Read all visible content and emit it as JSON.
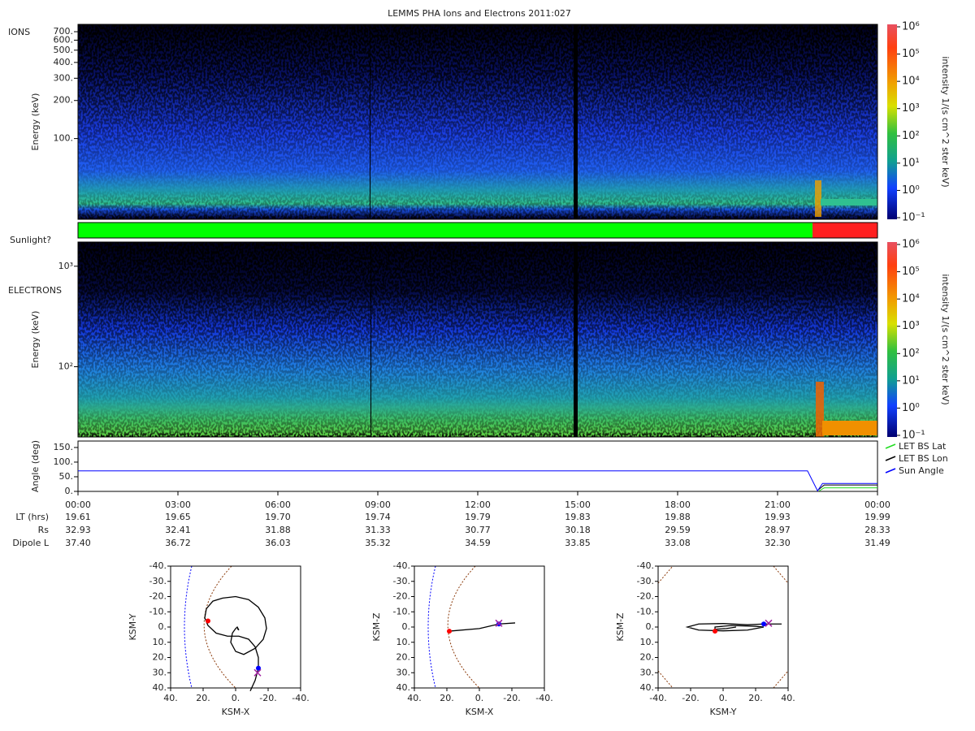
{
  "title": "LEMMS PHA Ions and Electrons  2011:027",
  "chart_data": [
    {
      "type": "spectrogram",
      "panel_label": "IONS",
      "y_label": "Energy (keV)",
      "y_scale": "log",
      "ylim": [
        23,
        800
      ],
      "yticks": [
        {
          "value": 100,
          "label": "100."
        },
        {
          "value": 200,
          "label": "200."
        },
        {
          "value": 300,
          "label": "300."
        },
        {
          "value": 400,
          "label": "400."
        },
        {
          "value": 500,
          "label": "500."
        },
        {
          "value": 600,
          "label": "600."
        },
        {
          "value": 700,
          "label": "700."
        }
      ],
      "colorbar": {
        "label": "intensity 1/(s cm^2 ster keV)",
        "scale": "log",
        "lim": [
          0.1,
          1000000
        ],
        "ticks": [
          {
            "value": 1000000,
            "label": "10⁶"
          },
          {
            "value": 100000,
            "label": "10⁵"
          },
          {
            "value": 10000,
            "label": "10⁴"
          },
          {
            "value": 1000,
            "label": "10³"
          },
          {
            "value": 100,
            "label": "10²"
          },
          {
            "value": 10,
            "label": "10¹"
          },
          {
            "value": 1,
            "label": "10⁰"
          },
          {
            "value": 0.1,
            "label": "10⁻¹"
          }
        ]
      }
    },
    {
      "type": "timeline",
      "y_label": "Sunlight?",
      "xlim": [
        0,
        24
      ],
      "segments": [
        {
          "start": 0,
          "end": 22.05,
          "color": "#00ff00"
        },
        {
          "start": 22.05,
          "end": 24,
          "color": "#ff2020"
        }
      ]
    },
    {
      "type": "spectrogram",
      "panel_label": "ELECTRONS",
      "y_label": "Energy (keV)",
      "y_scale": "log",
      "ylim": [
        20,
        1740
      ],
      "yticks": [
        {
          "value": 100,
          "label": "10²"
        },
        {
          "value": 1000,
          "label": "10³"
        }
      ],
      "colorbar": {
        "label": "intensity 1/(s cm^2 ster keV)",
        "scale": "log",
        "lim": [
          0.1,
          1000000
        ],
        "ticks": [
          {
            "value": 1000000,
            "label": "10⁶"
          },
          {
            "value": 100000,
            "label": "10⁵"
          },
          {
            "value": 10000,
            "label": "10⁴"
          },
          {
            "value": 1000,
            "label": "10³"
          },
          {
            "value": 100,
            "label": "10²"
          },
          {
            "value": 10,
            "label": "10¹"
          },
          {
            "value": 1,
            "label": "10⁰"
          },
          {
            "value": 0.1,
            "label": "10⁻¹"
          }
        ]
      }
    },
    {
      "type": "line",
      "y_label": "Angle (deg)",
      "xlim": [
        0,
        24
      ],
      "ylim": [
        0,
        172
      ],
      "yticks": [
        {
          "value": 0,
          "label": "0."
        },
        {
          "value": 50,
          "label": "50."
        },
        {
          "value": 100,
          "label": "100."
        },
        {
          "value": 150,
          "label": "150."
        }
      ],
      "xticks": [
        {
          "value": 0,
          "label": "00:00"
        },
        {
          "value": 3,
          "label": "03:00"
        },
        {
          "value": 6,
          "label": "06:00"
        },
        {
          "value": 9,
          "label": "09:00"
        },
        {
          "value": 12,
          "label": "12:00"
        },
        {
          "value": 15,
          "label": "15:00"
        },
        {
          "value": 18,
          "label": "18:00"
        },
        {
          "value": 21,
          "label": "21:00"
        },
        {
          "value": 24,
          "label": "00:00"
        }
      ],
      "legend": "outside-right",
      "series": [
        {
          "name": "LET BS Lat",
          "color": "#22dd22",
          "x": [
            22.25,
            22.4,
            24
          ],
          "values": [
            2,
            12,
            12
          ]
        },
        {
          "name": "LET BS Lon",
          "color": "#000000",
          "x": [
            22.2,
            22.4,
            24
          ],
          "values": [
            3,
            22,
            22
          ]
        },
        {
          "name": "Sun Angle",
          "color": "#0000ff",
          "x": [
            0,
            21.9,
            22.2,
            22.35,
            24
          ],
          "values": [
            70,
            70,
            2,
            27,
            27
          ]
        }
      ]
    },
    {
      "type": "orbit",
      "x_label": "KSM-X",
      "y_label": "KSM-Y",
      "xlim": [
        40,
        -40
      ],
      "ylim": [
        40,
        -40
      ],
      "xticks": [
        {
          "value": 40,
          "label": "40."
        },
        {
          "value": 20,
          "label": "20."
        },
        {
          "value": 0,
          "label": "0."
        },
        {
          "value": -20,
          "label": "-20."
        },
        {
          "value": -40,
          "label": "-40."
        }
      ],
      "yticks": [
        {
          "value": -40,
          "label": "-40."
        },
        {
          "value": -30,
          "label": "-30."
        },
        {
          "value": -20,
          "label": "-20."
        },
        {
          "value": -10,
          "label": "-10."
        },
        {
          "value": 0,
          "label": "0."
        },
        {
          "value": 10,
          "label": "10."
        },
        {
          "value": 20,
          "label": "20."
        },
        {
          "value": 30,
          "label": "30."
        },
        {
          "value": 40,
          "label": "40."
        }
      ],
      "series": [
        {
          "color": "#000000",
          "x": [
            -9,
            -12,
            -14,
            -14,
            -12,
            -8,
            -2,
            5,
            12,
            17,
            19,
            18,
            14,
            8,
            0,
            -8,
            -14,
            -18,
            -19,
            -17,
            -12,
            -5,
            0,
            3,
            2,
            0,
            -1,
            -2,
            -1
          ],
          "values": [
            42,
            35,
            27,
            20,
            13,
            8,
            6,
            6,
            4,
            -1,
            -6,
            -12,
            -17,
            -19,
            -20,
            -18,
            -13,
            -6,
            1,
            8,
            14,
            18,
            16,
            10,
            4,
            1,
            0,
            2,
            1
          ]
        }
      ],
      "markers": [
        {
          "x": 17,
          "y": -4,
          "color": "#ff0000",
          "symbol": "dot"
        },
        {
          "x": -14,
          "y": 27,
          "color": "#0000ff",
          "symbol": "dot"
        },
        {
          "x": -13.5,
          "y": 30,
          "color": "#a020a0",
          "symbol": "cross"
        }
      ]
    },
    {
      "type": "orbit",
      "x_label": "KSM-X",
      "y_label": "KSM-Z",
      "xlim": [
        40,
        -40
      ],
      "ylim": [
        40,
        -40
      ],
      "xticks": [
        {
          "value": 40,
          "label": "40."
        },
        {
          "value": 20,
          "label": "20."
        },
        {
          "value": 0,
          "label": "0."
        },
        {
          "value": -20,
          "label": "-20."
        },
        {
          "value": -40,
          "label": "-40."
        }
      ],
      "yticks": [
        {
          "value": -40,
          "label": "-40."
        },
        {
          "value": -30,
          "label": "-30."
        },
        {
          "value": -20,
          "label": "-20."
        },
        {
          "value": -10,
          "label": "-10."
        },
        {
          "value": 0,
          "label": "0."
        },
        {
          "value": 10,
          "label": "10."
        },
        {
          "value": 20,
          "label": "20."
        },
        {
          "value": 30,
          "label": "30."
        },
        {
          "value": 40,
          "label": "40."
        }
      ],
      "series": [
        {
          "color": "#000000",
          "x": [
            18.5,
            0,
            -12,
            -22
          ],
          "values": [
            2.7,
            1,
            -2,
            -2.7
          ]
        }
      ],
      "markers": [
        {
          "x": 18.5,
          "y": 2.7,
          "color": "#ff0000",
          "symbol": "dot"
        },
        {
          "x": -12,
          "y": -2,
          "color": "#0000ff",
          "symbol": "dot"
        },
        {
          "x": -12,
          "y": -2.5,
          "color": "#a020a0",
          "symbol": "cross"
        }
      ]
    },
    {
      "type": "orbit",
      "x_label": "KSM-Y",
      "y_label": "KSM-Z",
      "xlim": [
        -40,
        40
      ],
      "ylim": [
        40,
        -40
      ],
      "xticks": [
        {
          "value": -40,
          "label": "-40."
        },
        {
          "value": -20,
          "label": "-20."
        },
        {
          "value": 0,
          "label": "0."
        },
        {
          "value": 20,
          "label": "20."
        },
        {
          "value": 40,
          "label": "40."
        }
      ],
      "yticks": [
        {
          "value": -40,
          "label": "-40."
        },
        {
          "value": -30,
          "label": "-30."
        },
        {
          "value": -20,
          "label": "-20."
        },
        {
          "value": -10,
          "label": "-10."
        },
        {
          "value": 0,
          "label": "0."
        },
        {
          "value": 10,
          "label": "10."
        },
        {
          "value": 20,
          "label": "20."
        },
        {
          "value": 30,
          "label": "30."
        },
        {
          "value": 40,
          "label": "40."
        }
      ],
      "series": [
        {
          "color": "#000000",
          "x": [
            36,
            30,
            25,
            15,
            0,
            -15,
            -22,
            -15,
            0,
            15,
            25,
            20,
            5,
            -5,
            -5,
            2,
            8
          ],
          "values": [
            -2,
            -2,
            -2,
            -1.5,
            -2.3,
            -2,
            0,
            2,
            2.5,
            2,
            0,
            -0.5,
            -1,
            0,
            1.5,
            1,
            0
          ]
        }
      ],
      "markers": [
        {
          "x": -5,
          "y": 2.7,
          "color": "#ff0000",
          "symbol": "dot"
        },
        {
          "x": 25,
          "y": -2,
          "color": "#0000ff",
          "symbol": "dot"
        },
        {
          "x": 28,
          "y": -2.5,
          "color": "#a020a0",
          "symbol": "cross"
        }
      ]
    }
  ],
  "ephemeris": {
    "rows": [
      {
        "label": "LT (hrs)",
        "values": [
          "19.61",
          "19.65",
          "19.70",
          "19.74",
          "19.79",
          "19.83",
          "19.88",
          "19.93",
          "19.99"
        ]
      },
      {
        "label": "Rs",
        "values": [
          "32.93",
          "32.41",
          "31.88",
          "31.33",
          "30.77",
          "30.18",
          "29.59",
          "28.97",
          "28.33"
        ]
      },
      {
        "label": "Dipole L",
        "values": [
          "37.40",
          "36.72",
          "36.03",
          "35.32",
          "34.59",
          "33.85",
          "33.08",
          "32.30",
          "31.49"
        ]
      }
    ]
  }
}
